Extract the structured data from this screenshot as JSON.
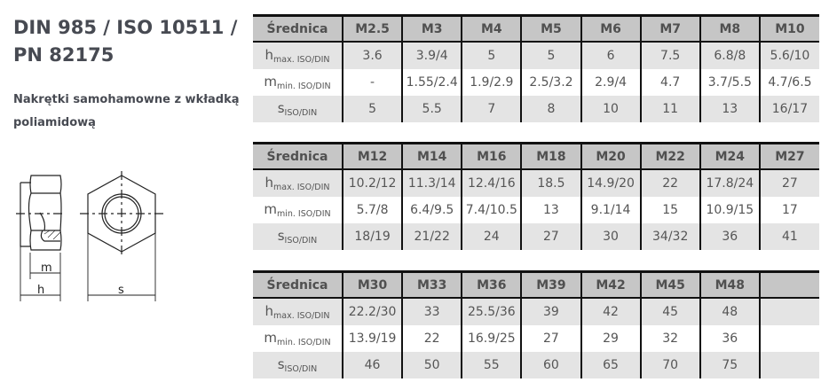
{
  "title": "DIN 985 / ISO 10511 / PN 82175",
  "subtitle": "Nakrętki samohamowne z wkładką poliamidową",
  "drawing": {
    "labels": {
      "m": "m",
      "h": "h",
      "s": "s"
    }
  },
  "row_labels": {
    "header": "Średnica",
    "h": {
      "main": "h",
      "sub": "max. ISO/DIN"
    },
    "m": {
      "main": "m",
      "sub": "min. ISO/DIN"
    },
    "s": {
      "main": "s",
      "sub": "ISO/DIN"
    }
  },
  "tables": [
    {
      "sizes": [
        "M2.5",
        "M3",
        "M4",
        "M5",
        "M6",
        "M7",
        "M8",
        "M10"
      ],
      "h": [
        "3.6",
        "3.9/4",
        "5",
        "5",
        "6",
        "7.5",
        "6.8/8",
        "5.6/10"
      ],
      "m": [
        "-",
        "1.55/2.4",
        "1.9/2.9",
        "2.5/3.2",
        "2.9/4",
        "4.7",
        "3.7/5.5",
        "4.7/6.5"
      ],
      "s": [
        "5",
        "5.5",
        "7",
        "8",
        "10",
        "11",
        "13",
        "16/17"
      ]
    },
    {
      "sizes": [
        "M12",
        "M14",
        "M16",
        "M18",
        "M20",
        "M22",
        "M24",
        "M27"
      ],
      "h": [
        "10.2/12",
        "11.3/14",
        "12.4/16",
        "18.5",
        "14.9/20",
        "22",
        "17.8/24",
        "27"
      ],
      "m": [
        "5.7/8",
        "6.4/9.5",
        "7.4/10.5",
        "13",
        "9.1/14",
        "15",
        "10.9/15",
        "17"
      ],
      "s": [
        "18/19",
        "21/22",
        "24",
        "27",
        "30",
        "34/32",
        "36",
        "41"
      ]
    },
    {
      "sizes": [
        "M30",
        "M33",
        "M36",
        "M39",
        "M42",
        "M45",
        "M48",
        ""
      ],
      "h": [
        "22.2/30",
        "33",
        "25.5/36",
        "39",
        "42",
        "45",
        "48",
        ""
      ],
      "m": [
        "13.9/19",
        "22",
        "16.9/25",
        "27",
        "29",
        "32",
        "36",
        ""
      ],
      "s": [
        "46",
        "50",
        "55",
        "60",
        "65",
        "70",
        "75",
        ""
      ]
    }
  ]
}
